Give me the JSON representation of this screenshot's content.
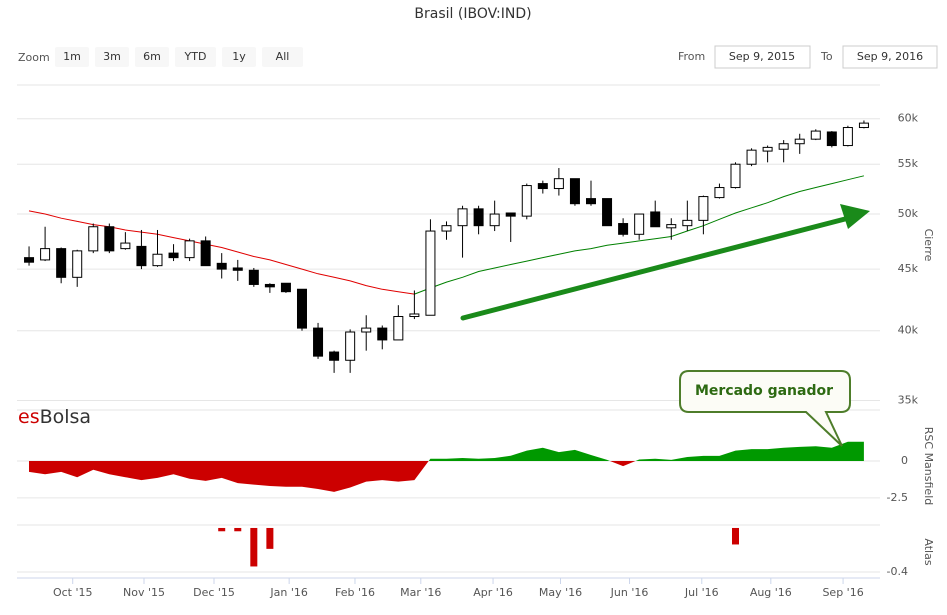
{
  "zoom": {
    "label": "Zoom",
    "buttons": [
      "1m",
      "3m",
      "6m",
      "YTD",
      "1y",
      "All"
    ]
  },
  "range": {
    "from_label": "From",
    "from": "Sep 9, 2015",
    "to_label": "To",
    "to": "Sep 9, 2016"
  },
  "logo": {
    "prefix": "es",
    "name": "Bolsa"
  },
  "chart_data": [
    {
      "type": "candlestick",
      "title": "Brasil (IBOV:IND)",
      "ylabel": "Cierre",
      "log_scale": true,
      "grid": true,
      "annotation": "Mercado ganador",
      "up_color": "#ffffff",
      "down_color": "#000000",
      "categories": [
        null,
        null,
        null,
        null,
        null,
        null,
        null,
        null,
        null,
        null,
        null,
        null,
        null,
        null,
        null,
        null,
        null,
        null,
        null,
        null,
        null,
        null,
        null,
        null,
        null,
        null,
        null,
        null,
        null,
        null,
        null,
        null,
        null,
        null,
        null,
        null,
        null,
        null,
        null,
        null,
        null,
        null,
        null,
        null,
        null,
        null,
        null,
        null,
        null,
        null,
        null,
        null,
        null
      ],
      "open": [
        46.0,
        45.8,
        46.8,
        44.3,
        46.6,
        48.8,
        46.8,
        47.0,
        45.3,
        46.4,
        46.0,
        47.5,
        45.5,
        45.1,
        44.9,
        43.7,
        43.8,
        43.3,
        40.2,
        38.4,
        37.8,
        39.9,
        40.2,
        39.3,
        41.1,
        41.2,
        48.4,
        48.9,
        50.5,
        48.9,
        50.1,
        49.8,
        53.0,
        52.5,
        53.5,
        51.5,
        51.5,
        49.1,
        48.1,
        50.2,
        48.7,
        48.9,
        49.4,
        51.6,
        52.6,
        55.0,
        56.4,
        56.6,
        57.2,
        57.7,
        58.5,
        57.0,
        59.0
      ],
      "high": [
        47.0,
        48.8,
        46.9,
        46.7,
        49.1,
        49.1,
        48.3,
        48.5,
        48.5,
        47.2,
        47.7,
        47.9,
        46.4,
        45.8,
        45.1,
        43.8,
        43.8,
        43.3,
        40.6,
        38.5,
        40.1,
        41.2,
        40.4,
        42.0,
        43.2,
        49.5,
        49.3,
        50.8,
        50.8,
        51.3,
        50.1,
        53.0,
        53.3,
        54.6,
        53.5,
        53.3,
        51.5,
        49.6,
        50.0,
        51.3,
        49.6,
        51.3,
        51.8,
        53.0,
        55.2,
        56.7,
        57.0,
        57.6,
        58.3,
        58.8,
        58.6,
        59.2,
        59.8
      ],
      "low": [
        45.3,
        45.7,
        43.8,
        43.5,
        46.4,
        46.4,
        46.7,
        45.0,
        45.2,
        45.7,
        45.7,
        45.3,
        44.2,
        44.0,
        43.5,
        43.0,
        43.0,
        40.0,
        37.9,
        36.9,
        36.9,
        38.5,
        38.6,
        39.3,
        40.9,
        41.2,
        47.6,
        46.0,
        48.1,
        48.4,
        47.4,
        49.5,
        52.0,
        51.8,
        50.8,
        50.8,
        48.9,
        47.9,
        47.6,
        48.8,
        47.6,
        48.4,
        48.1,
        51.5,
        52.5,
        54.8,
        55.2,
        55.2,
        56.1,
        57.6,
        56.8,
        56.9,
        58.9
      ],
      "close": [
        45.6,
        46.8,
        44.3,
        46.6,
        48.8,
        46.6,
        47.3,
        45.3,
        46.3,
        46.0,
        47.5,
        45.3,
        45.0,
        44.9,
        43.7,
        43.5,
        43.1,
        40.2,
        38.1,
        37.8,
        39.9,
        40.2,
        39.3,
        41.1,
        41.3,
        48.4,
        48.9,
        50.5,
        48.9,
        50.0,
        49.8,
        52.8,
        52.5,
        53.5,
        51.0,
        51.0,
        48.9,
        48.1,
        50.0,
        48.8,
        49.0,
        49.4,
        51.7,
        52.6,
        55.0,
        56.5,
        56.8,
        57.2,
        57.7,
        58.6,
        57.0,
        59.0,
        59.5
      ],
      "series": [
        {
          "color": "#e00000",
          "values": [
            50.3,
            50.0,
            49.6,
            49.3,
            49.0,
            48.8,
            48.5,
            48.3,
            48.1,
            47.8,
            47.5,
            47.2,
            46.9,
            46.5,
            46.1,
            45.8,
            45.4,
            45.0,
            44.6,
            44.3,
            44.0,
            43.6,
            43.3,
            43.1,
            42.9,
            null,
            null,
            null,
            null,
            null,
            null,
            null,
            null,
            null,
            null,
            null,
            null,
            null,
            null,
            null,
            null,
            null,
            null,
            null,
            null,
            null,
            null,
            null,
            null,
            null,
            null,
            null,
            null
          ]
        },
        {
          "color": "#008000",
          "values": [
            null,
            null,
            null,
            null,
            null,
            null,
            null,
            null,
            null,
            null,
            null,
            null,
            null,
            null,
            null,
            null,
            null,
            null,
            null,
            null,
            null,
            null,
            null,
            null,
            42.9,
            43.4,
            43.9,
            44.3,
            44.8,
            45.1,
            45.4,
            45.7,
            46.0,
            46.3,
            46.6,
            46.8,
            47.1,
            47.3,
            47.5,
            47.7,
            47.9,
            48.4,
            48.9,
            49.5,
            50.1,
            50.6,
            51.1,
            51.7,
            52.2,
            52.6,
            53.0,
            53.4,
            53.8
          ]
        }
      ],
      "ylim": [
        34.7,
        64.0
      ],
      "yticks": [
        {
          "value": 60,
          "label": "60k"
        },
        {
          "value": 55,
          "label": "55k"
        },
        {
          "value": 50,
          "label": "50k"
        },
        {
          "value": 45,
          "label": "45k"
        },
        {
          "value": 40,
          "label": "40k"
        },
        {
          "value": 35,
          "label": "35k"
        }
      ],
      "xlim": [
        -0.75,
        53
      ],
      "xticks": [
        {
          "value": 2.72,
          "label": "Oct '15"
        },
        {
          "value": 7.16,
          "label": "Nov '15"
        },
        {
          "value": 11.52,
          "label": "Dec '15"
        },
        {
          "value": 16.2,
          "label": "Jan '16"
        },
        {
          "value": 20.3,
          "label": "Feb '16"
        },
        {
          "value": 24.4,
          "label": "Mar '16"
        },
        {
          "value": 28.9,
          "label": "Apr '16"
        },
        {
          "value": 33.1,
          "label": "May '16"
        },
        {
          "value": 37.4,
          "label": "Jun '16"
        },
        {
          "value": 41.9,
          "label": "Jul '16"
        },
        {
          "value": 46.2,
          "label": "Aug '16"
        },
        {
          "value": 50.7,
          "label": "Sep '16"
        }
      ]
    },
    {
      "type": "area",
      "ylabel": "RSC Mansfield",
      "positive_color": "#009900",
      "negative_color": "#cc0000",
      "values": [
        -0.74,
        -0.9,
        -0.74,
        -1.1,
        -0.6,
        -0.9,
        -1.1,
        -1.3,
        -1.15,
        -0.9,
        -1.2,
        -1.35,
        -1.15,
        -1.5,
        -1.6,
        -1.7,
        -1.75,
        -1.75,
        -1.9,
        -2.1,
        -1.8,
        -1.4,
        -1.3,
        -1.4,
        -1.3,
        0.15,
        0.15,
        0.2,
        0.15,
        0.2,
        0.35,
        0.7,
        0.9,
        0.6,
        0.75,
        0.4,
        0.07,
        -0.35,
        0.1,
        0.15,
        0.07,
        0.27,
        0.34,
        0.34,
        0.7,
        0.8,
        0.8,
        0.9,
        0.95,
        1.0,
        0.9,
        1.3,
        1.3
      ],
      "ylim": [
        -4,
        3.45
      ],
      "yticks": [
        0,
        -2.5
      ]
    },
    {
      "type": "bar",
      "ylabel": "Atlas",
      "color": "#cc0000",
      "values": [
        null,
        null,
        null,
        null,
        null,
        null,
        null,
        null,
        null,
        null,
        null,
        null,
        -0.03,
        -0.03,
        -0.35,
        -0.19,
        null,
        null,
        null,
        null,
        null,
        null,
        null,
        null,
        null,
        null,
        null,
        null,
        null,
        null,
        null,
        null,
        null,
        null,
        null,
        null,
        null,
        null,
        null,
        null,
        null,
        null,
        null,
        null,
        -0.15,
        null,
        null,
        null,
        null,
        null,
        null,
        null,
        null
      ],
      "ylim": [
        -0.455,
        0.027
      ],
      "yticks": [
        -0.4
      ]
    }
  ]
}
